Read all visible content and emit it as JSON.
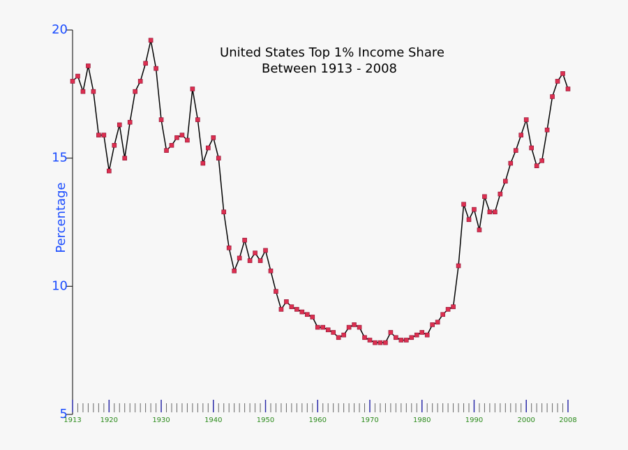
{
  "chart_data": {
    "type": "line",
    "title": [
      "United States Top 1% Income Share",
      "Between 1913 - 2008"
    ],
    "y_label": "Percentage",
    "x": [
      1913,
      1914,
      1915,
      1916,
      1917,
      1918,
      1919,
      1920,
      1921,
      1922,
      1923,
      1924,
      1925,
      1926,
      1927,
      1928,
      1929,
      1930,
      1931,
      1932,
      1933,
      1934,
      1935,
      1936,
      1937,
      1938,
      1939,
      1940,
      1941,
      1942,
      1943,
      1944,
      1945,
      1946,
      1947,
      1948,
      1949,
      1950,
      1951,
      1952,
      1953,
      1954,
      1955,
      1956,
      1957,
      1958,
      1959,
      1960,
      1961,
      1962,
      1963,
      1964,
      1965,
      1966,
      1967,
      1968,
      1969,
      1970,
      1971,
      1972,
      1973,
      1974,
      1975,
      1976,
      1977,
      1978,
      1979,
      1980,
      1981,
      1982,
      1983,
      1984,
      1985,
      1986,
      1987,
      1988,
      1989,
      1990,
      1991,
      1992,
      1993,
      1994,
      1995,
      1996,
      1997,
      1998,
      1999,
      2000,
      2001,
      2002,
      2003,
      2004,
      2005,
      2006,
      2007,
      2008
    ],
    "series": [
      {
        "color": "#000000",
        "marker_color": "#dc2f50",
        "values": [
          18.0,
          18.2,
          17.6,
          18.6,
          17.6,
          15.9,
          15.9,
          14.5,
          15.5,
          16.3,
          15.0,
          16.4,
          17.6,
          18.0,
          18.7,
          19.6,
          18.5,
          16.5,
          15.3,
          15.5,
          15.8,
          15.9,
          15.7,
          17.7,
          16.5,
          14.8,
          15.4,
          15.8,
          15.0,
          12.9,
          11.5,
          10.6,
          11.1,
          11.8,
          11.0,
          11.3,
          11.0,
          11.4,
          10.6,
          9.8,
          9.1,
          9.4,
          9.2,
          9.1,
          9.0,
          8.9,
          8.8,
          8.4,
          8.4,
          8.3,
          8.2,
          8.0,
          8.1,
          8.4,
          8.5,
          8.4,
          8.0,
          7.9,
          7.8,
          7.8,
          7.8,
          8.2,
          8.0,
          7.9,
          7.9,
          8.0,
          8.1,
          8.2,
          8.1,
          8.5,
          8.6,
          8.9,
          9.1,
          9.2,
          10.8,
          13.2,
          12.6,
          13.0,
          12.2,
          13.5,
          12.9,
          12.9,
          13.6,
          14.1,
          14.8,
          15.3,
          15.9,
          16.5,
          15.4,
          14.7,
          14.9,
          16.1,
          17.4,
          18.0,
          18.3,
          17.7
        ]
      }
    ],
    "xlim": [
      1913,
      2008
    ],
    "xticks": [
      1913,
      1920,
      1930,
      1940,
      1950,
      1960,
      1970,
      1980,
      1990,
      2000,
      2008
    ],
    "ylim": [
      5,
      20
    ],
    "yticks": [
      5,
      10,
      15,
      20
    ]
  }
}
